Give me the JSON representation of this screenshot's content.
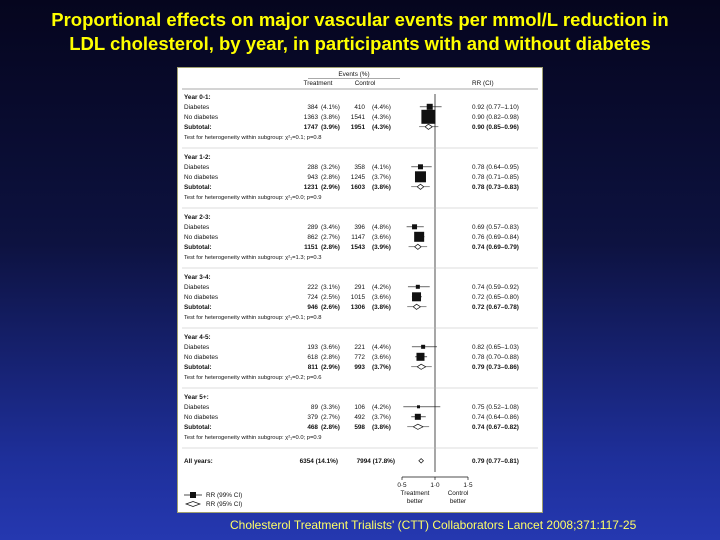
{
  "slide": {
    "title_line1": "Proportional effects on major vascular events per mmol/L reduction in",
    "title_line2": "LDL cholesterol, by year, in participants with and without diabetes",
    "citation": "Cholesterol Treatment Trialists' (CTT) Collaborators Lancet 2008;371:117-25"
  },
  "chart_data": {
    "type": "forest",
    "header": {
      "events": "Events (%)",
      "treatment": "Treatment",
      "control": "Control",
      "rr": "RR (CI)"
    },
    "groups": [
      {
        "title": "Year 0-1:",
        "rows": [
          {
            "label": "Diabetes",
            "t": "384",
            "tp": "(4.1%)",
            "c": "410",
            "cp": "(4.4%)",
            "rr_text": "0.92 (0.77–1.10)",
            "rr": 0.92,
            "lo": 0.77,
            "hi": 1.1,
            "kind": "box",
            "size": 6
          },
          {
            "label": "No diabetes",
            "t": "1363",
            "tp": "(3.8%)",
            "c": "1541",
            "cp": "(4.3%)",
            "rr_text": "0.90 (0.82–0.98)",
            "rr": 0.9,
            "lo": 0.82,
            "hi": 0.98,
            "kind": "box",
            "size": 14
          },
          {
            "label": "Subtotal:",
            "t": "1747",
            "tp": "(3.9%)",
            "c": "1951",
            "cp": "(4.3%)",
            "rr_text": "0.90 (0.85–0.96)",
            "rr": 0.9,
            "lo": 0.85,
            "hi": 0.96,
            "kind": "diamond",
            "bold": true
          }
        ],
        "het": "Test for heterogeneity within subgroup: χ²₁=0.1; p=0.8"
      },
      {
        "title": "Year 1-2:",
        "rows": [
          {
            "label": "Diabetes",
            "t": "288",
            "tp": "(3.2%)",
            "c": "358",
            "cp": "(4.1%)",
            "rr_text": "0.78 (0.64–0.95)",
            "rr": 0.78,
            "lo": 0.64,
            "hi": 0.95,
            "kind": "box",
            "size": 5
          },
          {
            "label": "No diabetes",
            "t": "943",
            "tp": "(2.8%)",
            "c": "1245",
            "cp": "(3.7%)",
            "rr_text": "0.78 (0.71–0.85)",
            "rr": 0.78,
            "lo": 0.71,
            "hi": 0.85,
            "kind": "box",
            "size": 11
          },
          {
            "label": "Subtotal:",
            "t": "1231",
            "tp": "(2.9%)",
            "c": "1603",
            "cp": "(3.8%)",
            "rr_text": "0.78 (0.73–0.83)",
            "rr": 0.78,
            "lo": 0.73,
            "hi": 0.83,
            "kind": "diamond",
            "bold": true
          }
        ],
        "het": "Test for heterogeneity within subgroup: χ²₁=0.0; p=0.9"
      },
      {
        "title": "Year 2-3:",
        "rows": [
          {
            "label": "Diabetes",
            "t": "289",
            "tp": "(3.4%)",
            "c": "396",
            "cp": "(4.8%)",
            "rr_text": "0.69 (0.57–0.83)",
            "rr": 0.69,
            "lo": 0.57,
            "hi": 0.83,
            "kind": "box",
            "size": 5
          },
          {
            "label": "No diabetes",
            "t": "862",
            "tp": "(2.7%)",
            "c": "1147",
            "cp": "(3.6%)",
            "rr_text": "0.76 (0.69–0.84)",
            "rr": 0.76,
            "lo": 0.69,
            "hi": 0.84,
            "kind": "box",
            "size": 10
          },
          {
            "label": "Subtotal:",
            "t": "1151",
            "tp": "(2.8%)",
            "c": "1543",
            "cp": "(3.9%)",
            "rr_text": "0.74 (0.69–0.79)",
            "rr": 0.74,
            "lo": 0.69,
            "hi": 0.79,
            "kind": "diamond",
            "bold": true
          }
        ],
        "het": "Test for heterogeneity within subgroup: χ²₁=1.3; p=0.3"
      },
      {
        "title": "Year 3-4:",
        "rows": [
          {
            "label": "Diabetes",
            "t": "222",
            "tp": "(3.1%)",
            "c": "291",
            "cp": "(4.2%)",
            "rr_text": "0.74 (0.59–0.92)",
            "rr": 0.74,
            "lo": 0.59,
            "hi": 0.92,
            "kind": "box",
            "size": 4
          },
          {
            "label": "No diabetes",
            "t": "724",
            "tp": "(2.5%)",
            "c": "1015",
            "cp": "(3.6%)",
            "rr_text": "0.72 (0.65–0.80)",
            "rr": 0.72,
            "lo": 0.65,
            "hi": 0.8,
            "kind": "box",
            "size": 9
          },
          {
            "label": "Subtotal:",
            "t": "946",
            "tp": "(2.6%)",
            "c": "1306",
            "cp": "(3.8%)",
            "rr_text": "0.72 (0.67–0.78)",
            "rr": 0.72,
            "lo": 0.67,
            "hi": 0.78,
            "kind": "diamond",
            "bold": true
          }
        ],
        "het": "Test for heterogeneity within subgroup: χ²₁=0.1; p=0.8"
      },
      {
        "title": "Year 4-5:",
        "rows": [
          {
            "label": "Diabetes",
            "t": "193",
            "tp": "(3.6%)",
            "c": "221",
            "cp": "(4.4%)",
            "rr_text": "0.82 (0.65–1.03)",
            "rr": 0.82,
            "lo": 0.65,
            "hi": 1.03,
            "kind": "box",
            "size": 4
          },
          {
            "label": "No diabetes",
            "t": "618",
            "tp": "(2.8%)",
            "c": "772",
            "cp": "(3.6%)",
            "rr_text": "0.78 (0.70–0.88)",
            "rr": 0.78,
            "lo": 0.7,
            "hi": 0.88,
            "kind": "box",
            "size": 8
          },
          {
            "label": "Subtotal:",
            "t": "811",
            "tp": "(2.9%)",
            "c": "993",
            "cp": "(3.7%)",
            "rr_text": "0.79 (0.73–0.86)",
            "rr": 0.79,
            "lo": 0.73,
            "hi": 0.86,
            "kind": "diamond",
            "bold": true
          }
        ],
        "het": "Test for heterogeneity within subgroup: χ²₁=0.2; p=0.6"
      },
      {
        "title": "Year 5+:",
        "rows": [
          {
            "label": "Diabetes",
            "t": "89",
            "tp": "(3.3%)",
            "c": "106",
            "cp": "(4.2%)",
            "rr_text": "0.75 (0.52–1.08)",
            "rr": 0.75,
            "lo": 0.52,
            "hi": 1.08,
            "kind": "box",
            "size": 3
          },
          {
            "label": "No diabetes",
            "t": "379",
            "tp": "(2.7%)",
            "c": "492",
            "cp": "(3.7%)",
            "rr_text": "0.74 (0.64–0.86)",
            "rr": 0.74,
            "lo": 0.64,
            "hi": 0.86,
            "kind": "box",
            "size": 6
          },
          {
            "label": "Subtotal:",
            "t": "468",
            "tp": "(2.8%)",
            "c": "598",
            "cp": "(3.8%)",
            "rr_text": "0.74 (0.67–0.82)",
            "rr": 0.74,
            "lo": 0.67,
            "hi": 0.82,
            "kind": "diamond",
            "bold": true
          }
        ],
        "het": "Test for heterogeneity within subgroup: χ²₁=0.0; p=0.9"
      }
    ],
    "overall": {
      "label": "All years:",
      "t": "6354",
      "tp": "(14.1%)",
      "c": "7994",
      "cp": "(17.8%)",
      "rr_text": "0.79 (0.77–0.81)",
      "rr": 0.79,
      "lo": 0.77,
      "hi": 0.81
    },
    "xaxis": {
      "ticks": [
        0.5,
        1.0,
        1.5
      ],
      "tick_labels": [
        "0·5",
        "1·0",
        "1·5"
      ],
      "range": [
        0.5,
        1.5
      ],
      "ref": 1.0
    },
    "axis_labels": {
      "left": [
        "Treatment",
        "better"
      ],
      "right": [
        "Control",
        "better"
      ]
    },
    "legend": {
      "box": "RR (99% CI)",
      "diamond": "RR (95% CI)"
    }
  }
}
